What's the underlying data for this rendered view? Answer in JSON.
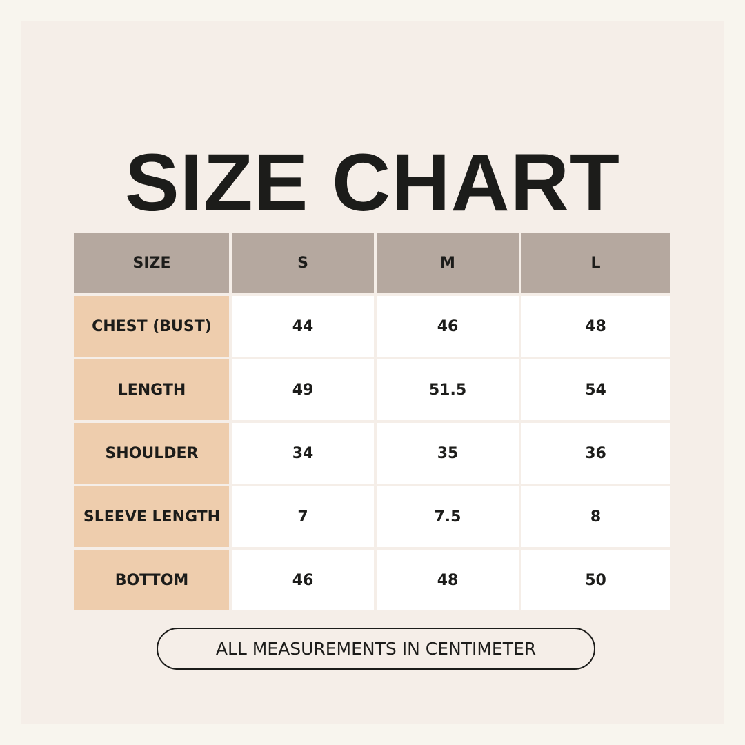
{
  "title": "SIZE CHART",
  "table": {
    "header": [
      "SIZE",
      "S",
      "M",
      "L"
    ],
    "rows": [
      [
        "CHEST (BUST)",
        44,
        46,
        48
      ],
      [
        "LENGTH",
        49,
        51.5,
        54
      ],
      [
        "SHOULDER",
        34,
        35,
        36
      ],
      [
        "SLEEVE LENGTH",
        7,
        7.5,
        8
      ],
      [
        "BOTTOM",
        46,
        48,
        50
      ]
    ]
  },
  "note": "ALL MEASUREMENTS IN CENTIMETER"
}
